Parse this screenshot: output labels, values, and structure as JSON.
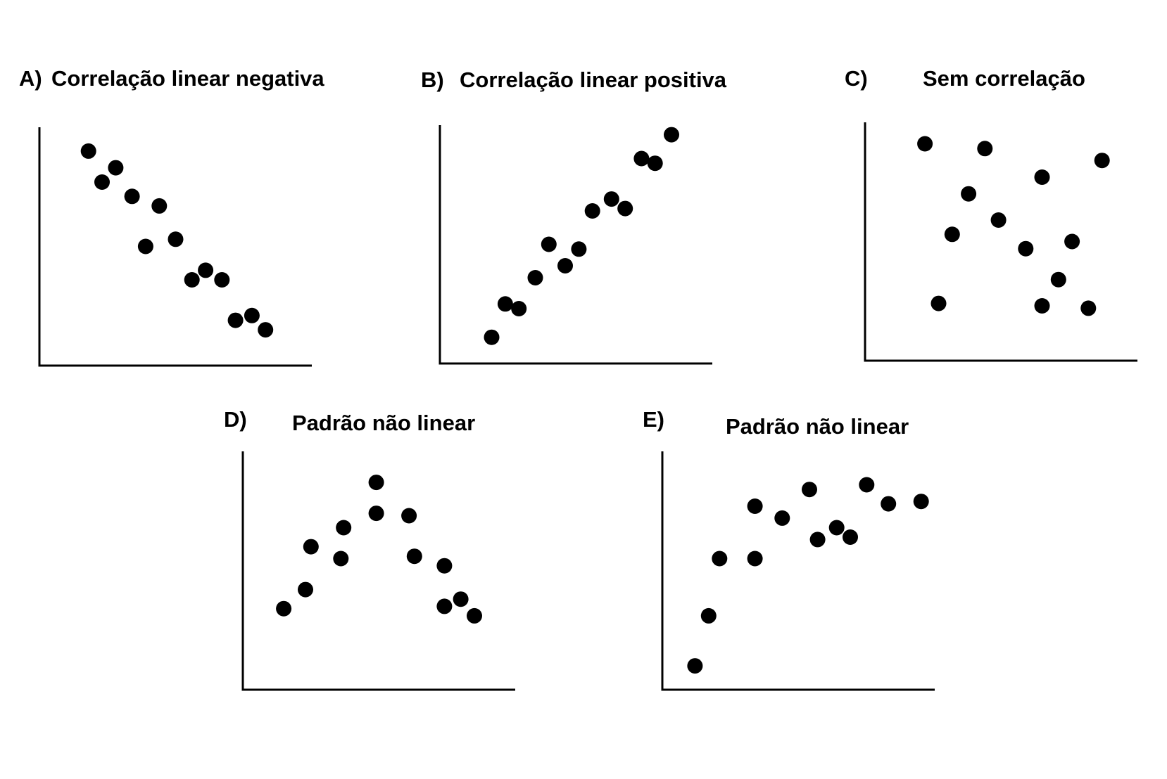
{
  "figure": {
    "background": "#ffffff",
    "ink_color": "#000000"
  },
  "chart_data": [
    {
      "type": "scatter",
      "panel": "A)",
      "title": "Correlação linear negativa",
      "xlabel": "",
      "ylabel": "",
      "xlim": [
        0,
        10
      ],
      "ylim": [
        0,
        10
      ],
      "grid": false,
      "points": [
        {
          "x": 1.8,
          "y": 9.0
        },
        {
          "x": 2.3,
          "y": 7.7
        },
        {
          "x": 2.8,
          "y": 8.3
        },
        {
          "x": 3.4,
          "y": 7.1
        },
        {
          "x": 3.9,
          "y": 5.0
        },
        {
          "x": 4.4,
          "y": 6.7
        },
        {
          "x": 5.0,
          "y": 5.3
        },
        {
          "x": 5.6,
          "y": 3.6
        },
        {
          "x": 6.1,
          "y": 4.0
        },
        {
          "x": 6.7,
          "y": 3.6
        },
        {
          "x": 7.2,
          "y": 1.9
        },
        {
          "x": 7.8,
          "y": 2.1
        },
        {
          "x": 8.3,
          "y": 1.5
        }
      ]
    },
    {
      "type": "scatter",
      "panel": "B)",
      "title": "Correlação linear positiva",
      "xlabel": "",
      "ylabel": "",
      "xlim": [
        0,
        10
      ],
      "ylim": [
        0,
        10
      ],
      "grid": false,
      "points": [
        {
          "x": 1.9,
          "y": 1.1
        },
        {
          "x": 2.4,
          "y": 2.5
        },
        {
          "x": 2.9,
          "y": 2.3
        },
        {
          "x": 3.5,
          "y": 3.6
        },
        {
          "x": 4.0,
          "y": 5.0
        },
        {
          "x": 4.6,
          "y": 4.1
        },
        {
          "x": 5.1,
          "y": 4.8
        },
        {
          "x": 5.6,
          "y": 6.4
        },
        {
          "x": 6.3,
          "y": 6.9
        },
        {
          "x": 6.8,
          "y": 6.5
        },
        {
          "x": 7.4,
          "y": 8.6
        },
        {
          "x": 7.9,
          "y": 8.4
        },
        {
          "x": 8.5,
          "y": 9.6
        }
      ]
    },
    {
      "type": "scatter",
      "panel": "C)",
      "title": "Sem correlação",
      "xlabel": "",
      "ylabel": "",
      "xlim": [
        0,
        10
      ],
      "ylim": [
        0,
        10
      ],
      "grid": false,
      "points": [
        {
          "x": 2.2,
          "y": 9.1
        },
        {
          "x": 2.7,
          "y": 2.4
        },
        {
          "x": 3.2,
          "y": 5.3
        },
        {
          "x": 3.8,
          "y": 7.0
        },
        {
          "x": 4.4,
          "y": 8.9
        },
        {
          "x": 4.9,
          "y": 5.9
        },
        {
          "x": 5.9,
          "y": 4.7
        },
        {
          "x": 6.5,
          "y": 2.3
        },
        {
          "x": 6.5,
          "y": 7.7
        },
        {
          "x": 7.1,
          "y": 3.4
        },
        {
          "x": 7.6,
          "y": 5.0
        },
        {
          "x": 8.2,
          "y": 2.2
        },
        {
          "x": 8.7,
          "y": 8.4
        }
      ]
    },
    {
      "type": "scatter",
      "panel": "D)",
      "title": "Padrão não linear",
      "xlabel": "",
      "ylabel": "",
      "xlim": [
        0,
        10
      ],
      "ylim": [
        0,
        10
      ],
      "grid": false,
      "points": [
        {
          "x": 1.5,
          "y": 3.4
        },
        {
          "x": 2.3,
          "y": 4.2
        },
        {
          "x": 2.5,
          "y": 6.0
        },
        {
          "x": 3.6,
          "y": 5.5
        },
        {
          "x": 3.7,
          "y": 6.8
        },
        {
          "x": 4.9,
          "y": 7.4
        },
        {
          "x": 4.9,
          "y": 8.7
        },
        {
          "x": 6.1,
          "y": 7.3
        },
        {
          "x": 6.3,
          "y": 5.6
        },
        {
          "x": 7.4,
          "y": 5.2
        },
        {
          "x": 7.4,
          "y": 3.5
        },
        {
          "x": 8.0,
          "y": 3.8
        },
        {
          "x": 8.5,
          "y": 3.1
        }
      ]
    },
    {
      "type": "scatter",
      "panel": "E)",
      "title": "Padrão não linear",
      "xlabel": "",
      "ylabel": "",
      "xlim": [
        0,
        10
      ],
      "ylim": [
        0,
        10
      ],
      "grid": false,
      "points": [
        {
          "x": 1.2,
          "y": 1.0
        },
        {
          "x": 1.7,
          "y": 3.1
        },
        {
          "x": 2.1,
          "y": 5.5
        },
        {
          "x": 3.4,
          "y": 7.7
        },
        {
          "x": 3.4,
          "y": 5.5
        },
        {
          "x": 4.4,
          "y": 7.2
        },
        {
          "x": 5.4,
          "y": 8.4
        },
        {
          "x": 5.7,
          "y": 6.3
        },
        {
          "x": 6.4,
          "y": 6.8
        },
        {
          "x": 6.9,
          "y": 6.4
        },
        {
          "x": 7.5,
          "y": 8.6
        },
        {
          "x": 8.3,
          "y": 7.8
        },
        {
          "x": 9.5,
          "y": 7.9
        }
      ]
    }
  ]
}
